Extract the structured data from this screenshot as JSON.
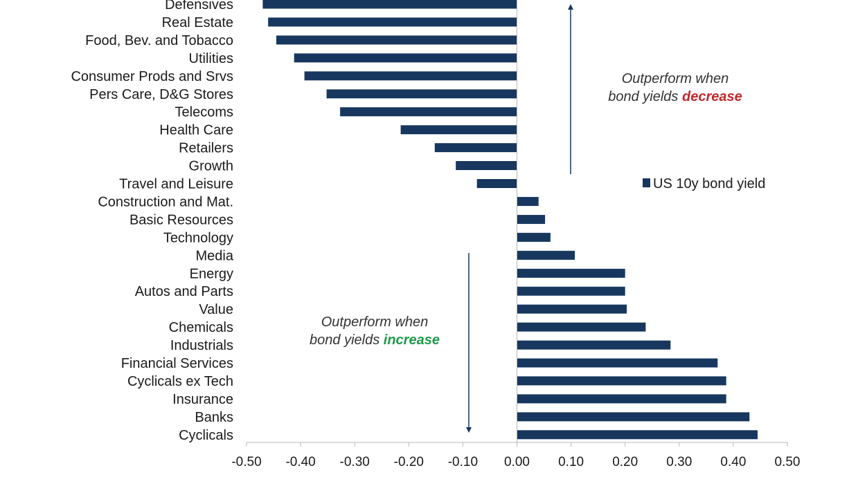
{
  "chart_data": {
    "type": "bar",
    "orientation": "horizontal",
    "categories": [
      "Defensives",
      "Real Estate",
      "Food, Bev. and Tobacco",
      "Utilities",
      "Consumer Prods and Srvs",
      "Pers Care, D&G Stores",
      "Telecoms",
      "Health Care",
      "Retailers",
      "Growth",
      "Travel and Leisure",
      "Construction and Mat.",
      "Basic Resources",
      "Technology",
      "Media",
      "Energy",
      "Autos and Parts",
      "Value",
      "Chemicals",
      "Industrials",
      "Financial Services",
      "Cyclicals ex Tech",
      "Insurance",
      "Banks",
      "Cyclicals"
    ],
    "series": [
      {
        "name": "US 10y bond yield",
        "color": "#17375e",
        "values": [
          -0.47,
          -0.46,
          -0.445,
          -0.412,
          -0.393,
          -0.352,
          -0.327,
          -0.215,
          -0.152,
          -0.113,
          -0.074,
          0.04,
          0.052,
          0.062,
          0.107,
          0.2,
          0.2,
          0.203,
          0.238,
          0.284,
          0.371,
          0.387,
          0.387,
          0.43,
          0.445
        ]
      }
    ],
    "xlim": [
      -0.5,
      0.5
    ],
    "xticks": [
      "-0.50",
      "-0.40",
      "-0.30",
      "-0.20",
      "-0.10",
      "0.00",
      "0.10",
      "0.20",
      "0.30",
      "0.40",
      "0.50"
    ],
    "xlabel": "",
    "ylabel": "",
    "title": "",
    "grid": false,
    "legend": {
      "placement": "right",
      "label": "US 10y bond yield"
    },
    "annotations": [
      {
        "line1": "Outperform when",
        "line2_prefix": "bond yields ",
        "line2_emph": "decrease",
        "emph_color": "#c0282d",
        "arrow": "up"
      },
      {
        "line1": "Outperform when",
        "line2_prefix": "bond yields ",
        "line2_emph": "increase",
        "emph_color": "#1e9a4b",
        "arrow": "down"
      }
    ]
  }
}
